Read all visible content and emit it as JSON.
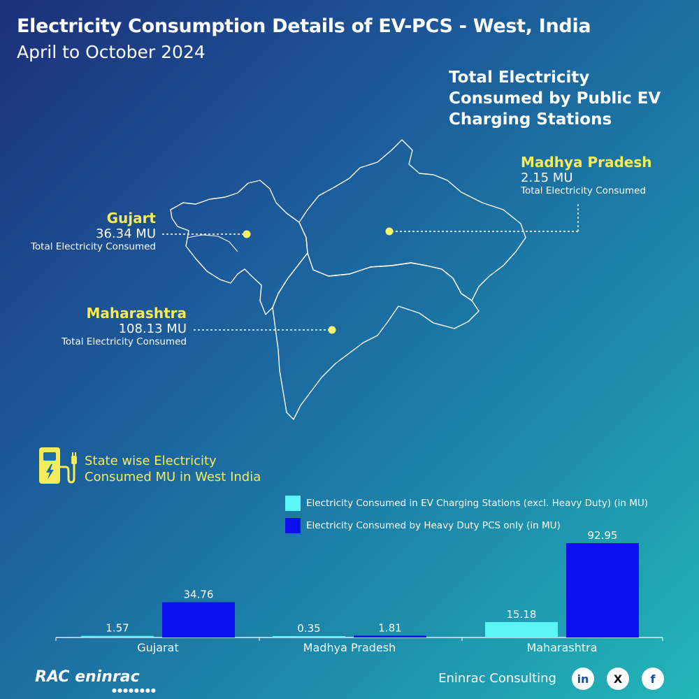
{
  "header": {
    "title": "Electricity Consumption Details of EV-PCS - West, India",
    "subtitle": "April to October 2024"
  },
  "map": {
    "heading": "Total Electricity Consumed by Public EV Charging Stations",
    "states": [
      {
        "name": "Gujart",
        "value": "36.34 MU",
        "caption": "Total Electricity Consumed"
      },
      {
        "name": "Madhya Pradesh",
        "value": "2.15 MU",
        "caption": "Total Electricity Consumed"
      },
      {
        "name": "Maharashtra",
        "value": "108.13 MU",
        "caption": "Total Electricity Consumed"
      }
    ]
  },
  "bar_section": {
    "heading_line1": "State wise Electricity",
    "heading_line2": "Consumed MU in West India",
    "icon": "ev-charger-icon"
  },
  "chart_data": {
    "type": "bar",
    "categories": [
      "Gujarat",
      "Madhya Pradesh",
      "Maharashtra"
    ],
    "series": [
      {
        "name": "Electricity Consumed in EV Charging Stations (excl. Heavy Duty) (in MU)",
        "values": [
          1.57,
          0.35,
          15.18
        ],
        "color": "#5cf5f5"
      },
      {
        "name": "Electricity Consumed by Heavy Duty PCS only (in MU)",
        "values": [
          34.76,
          1.81,
          92.95
        ],
        "color": "#0a10ee"
      }
    ],
    "labels": [
      [
        "1.57",
        "0.35",
        "15.18"
      ],
      [
        "34.76",
        "1.81",
        "92.95"
      ]
    ],
    "ylim": [
      0,
      92.95
    ],
    "legend": "top-right",
    "grid": false
  },
  "footer": {
    "brand": "Eninrac Consulting",
    "logo_text": "RAC eninrac",
    "social": [
      "linkedin-icon",
      "x-icon",
      "facebook-icon"
    ],
    "social_labels": [
      "in",
      "X",
      "f"
    ]
  },
  "colors": {
    "accent": "#f5ec5a",
    "series_light": "#5cf5f5",
    "series_dark": "#0a10ee"
  }
}
